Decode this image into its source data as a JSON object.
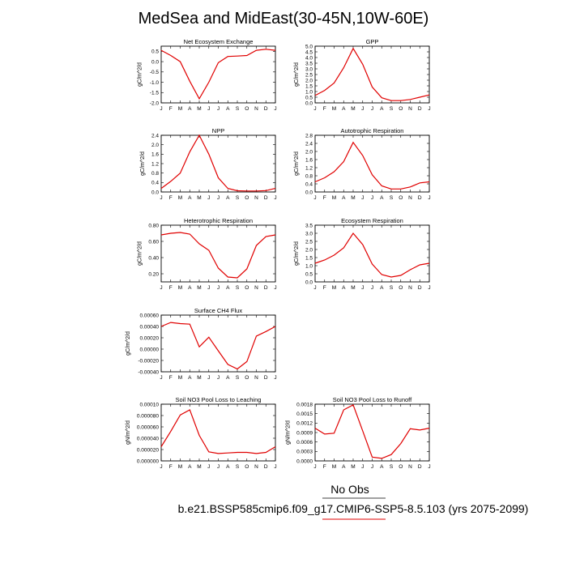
{
  "figure": {
    "title": "MedSea and MidEast(30-45N,10W-60E)",
    "legend_label": "No Obs",
    "case_label": "b.e21.BSSP585cmip6.f09_g17.CMIP6-SSP5-8.5.103 (yrs 2075-2099)",
    "colors": {
      "model_line": "#e00000",
      "legend_underline": "#000000",
      "case_underline": "#e00000"
    }
  },
  "chart_data": [
    {
      "type": "line",
      "title": "Net Ecosystem Exchange",
      "ylabel": "gC/m^2/d",
      "categories": [
        "J",
        "F",
        "M",
        "A",
        "M",
        "J",
        "J",
        "A",
        "S",
        "O",
        "N",
        "D",
        "J"
      ],
      "ylim": [
        -2.0,
        0.75
      ],
      "yticks": [
        -2.0,
        -1.5,
        -1.0,
        -0.5,
        0.0,
        0.5
      ],
      "yticklabels": [
        "-2.0",
        "-1.5",
        "-1.0",
        "-0.5",
        "0.0",
        "0.5"
      ],
      "series": [
        {
          "values": [
            0.55,
            0.3,
            0.0,
            -0.95,
            -1.8,
            -1.0,
            -0.05,
            0.25,
            0.27,
            0.3,
            0.55,
            0.6,
            0.55
          ]
        }
      ]
    },
    {
      "type": "line",
      "title": "GPP",
      "ylabel": "gC/m^2/d",
      "categories": [
        "J",
        "F",
        "M",
        "A",
        "M",
        "J",
        "J",
        "A",
        "S",
        "O",
        "N",
        "D",
        "J"
      ],
      "ylim": [
        0,
        5.0
      ],
      "yticks": [
        0,
        0.5,
        1,
        1.5,
        2,
        2.5,
        3,
        3.5,
        4,
        4.5,
        5
      ],
      "yticklabels": [
        "0.0",
        "0.5",
        "1.0",
        "1.5",
        "2.0",
        "2.5",
        "3.0",
        "3.5",
        "4.0",
        "4.5",
        "5.0"
      ],
      "series": [
        {
          "values": [
            0.65,
            1.1,
            1.75,
            3.1,
            4.8,
            3.4,
            1.4,
            0.45,
            0.2,
            0.2,
            0.3,
            0.5,
            0.7
          ]
        }
      ]
    },
    {
      "type": "line",
      "title": "NPP",
      "ylabel": "gC/m^2/d",
      "categories": [
        "J",
        "F",
        "M",
        "A",
        "M",
        "J",
        "J",
        "A",
        "S",
        "O",
        "N",
        "D",
        "J"
      ],
      "ylim": [
        0,
        2.4
      ],
      "yticks": [
        0,
        0.4,
        0.8,
        1.2,
        1.6,
        2.0,
        2.4
      ],
      "yticklabels": [
        "0.0",
        "0.4",
        "0.8",
        "1.2",
        "1.6",
        "2.0",
        "2.4"
      ],
      "series": [
        {
          "values": [
            0.15,
            0.45,
            0.8,
            1.7,
            2.4,
            1.6,
            0.6,
            0.15,
            0.05,
            0.04,
            0.04,
            0.06,
            0.15
          ]
        }
      ]
    },
    {
      "type": "line",
      "title": "Autotrophic Respiration",
      "ylabel": "gC/m^2/d",
      "categories": [
        "J",
        "F",
        "M",
        "A",
        "M",
        "J",
        "J",
        "A",
        "S",
        "O",
        "N",
        "D",
        "J"
      ],
      "ylim": [
        0,
        2.8
      ],
      "yticks": [
        0,
        0.4,
        0.8,
        1.2,
        1.6,
        2.0,
        2.4,
        2.8
      ],
      "yticklabels": [
        "0.0",
        "0.4",
        "0.8",
        "1.2",
        "1.6",
        "2.0",
        "2.4",
        "2.8"
      ],
      "series": [
        {
          "values": [
            0.5,
            0.7,
            1.0,
            1.5,
            2.45,
            1.8,
            0.85,
            0.3,
            0.15,
            0.15,
            0.25,
            0.45,
            0.5
          ]
        }
      ]
    },
    {
      "type": "line",
      "title": "Heterotrophic Respiration",
      "ylabel": "gC/m^2/d",
      "categories": [
        "J",
        "F",
        "M",
        "A",
        "M",
        "J",
        "J",
        "A",
        "S",
        "O",
        "N",
        "D",
        "J"
      ],
      "ylim": [
        0.1,
        0.8
      ],
      "yticks": [
        0.2,
        0.4,
        0.6,
        0.8
      ],
      "yticklabels": [
        "0.20",
        "0.40",
        "0.60",
        "0.80"
      ],
      "series": [
        {
          "values": [
            0.68,
            0.7,
            0.71,
            0.69,
            0.57,
            0.49,
            0.27,
            0.16,
            0.15,
            0.26,
            0.55,
            0.66,
            0.68
          ]
        }
      ]
    },
    {
      "type": "line",
      "title": "Ecosystem Respiration",
      "ylabel": "gC/m^2/d",
      "categories": [
        "J",
        "F",
        "M",
        "A",
        "M",
        "J",
        "J",
        "A",
        "S",
        "O",
        "N",
        "D",
        "J"
      ],
      "ylim": [
        0,
        3.5
      ],
      "yticks": [
        0,
        0.5,
        1,
        1.5,
        2,
        2.5,
        3,
        3.5
      ],
      "yticklabels": [
        "0.0",
        "0.5",
        "1.0",
        "1.5",
        "2.0",
        "2.5",
        "3.0",
        "3.5"
      ],
      "series": [
        {
          "values": [
            1.15,
            1.35,
            1.65,
            2.1,
            3.0,
            2.3,
            1.1,
            0.45,
            0.3,
            0.4,
            0.75,
            1.05,
            1.15
          ]
        }
      ]
    },
    {
      "type": "line",
      "title": "Surface CH4 Flux",
      "ylabel": "gC/m^2/d",
      "categories": [
        "J",
        "F",
        "M",
        "A",
        "M",
        "J",
        "J",
        "A",
        "S",
        "O",
        "N",
        "D",
        "J"
      ],
      "ylim": [
        -0.0004,
        0.0006
      ],
      "yticks": [
        -0.0004,
        -0.0002,
        0,
        0.0002,
        0.0004,
        0.0006
      ],
      "yticklabels": [
        "-0.00040",
        "-0.00020",
        "0.00000",
        "0.00020",
        "0.00040",
        "0.00060"
      ],
      "series": [
        {
          "values": [
            0.0004,
            0.00047,
            0.00045,
            0.00044,
            4e-05,
            0.00021,
            -3e-05,
            -0.00027,
            -0.00035,
            -0.00022,
            0.00023,
            0.00031,
            0.0004
          ]
        }
      ]
    },
    {
      "type": "line",
      "title": "Soil NO3 Pool Loss to Leaching",
      "ylabel": "gN/m^2/d",
      "categories": [
        "J",
        "F",
        "M",
        "A",
        "M",
        "J",
        "J",
        "A",
        "S",
        "O",
        "N",
        "D",
        "J"
      ],
      "ylim": [
        0,
        0.0001
      ],
      "yticks": [
        0,
        2e-05,
        4e-05,
        6e-05,
        8e-05,
        0.0001
      ],
      "yticklabels": [
        "0.000000",
        "0.000020",
        "0.000040",
        "0.000060",
        "0.000080",
        "0.00010"
      ],
      "series": [
        {
          "values": [
            2.5e-05,
            5.2e-05,
            8.1e-05,
            9e-05,
            4.5e-05,
            1.6e-05,
            1.3e-05,
            1.4e-05,
            1.5e-05,
            1.5e-05,
            1.3e-05,
            1.5e-05,
            2.5e-05
          ]
        }
      ]
    },
    {
      "type": "line",
      "title": "Soil NO3 Pool Loss to Runoff",
      "ylabel": "gN/m^2/d",
      "categories": [
        "J",
        "F",
        "M",
        "A",
        "M",
        "J",
        "J",
        "A",
        "S",
        "O",
        "N",
        "D",
        "J"
      ],
      "ylim": [
        0,
        0.0018
      ],
      "yticks": [
        0,
        0.0003,
        0.0006,
        0.0009,
        0.0012,
        0.0015,
        0.0018
      ],
      "yticklabels": [
        "0.0000",
        "0.0003",
        "0.0006",
        "0.0009",
        "0.0012",
        "0.0015",
        "0.0018"
      ],
      "series": [
        {
          "values": [
            0.00104,
            0.00085,
            0.00088,
            0.00162,
            0.00178,
            0.00095,
            0.00012,
            8e-05,
            0.0002,
            0.00055,
            0.00102,
            0.00098,
            0.00104
          ]
        }
      ]
    }
  ]
}
